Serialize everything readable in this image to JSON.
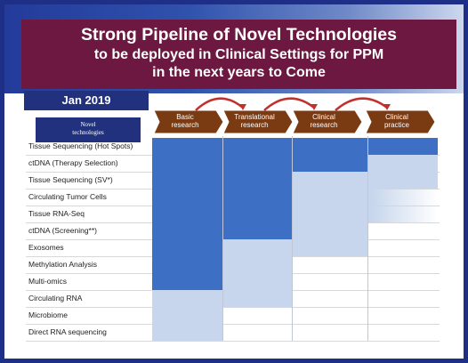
{
  "title": {
    "line1": "Strong Pipeline of Novel Technologies",
    "line2": "to be deployed in Clinical Settings for PPM",
    "line3": "in the next years to Come"
  },
  "date": "Jan 2019",
  "tech_header": {
    "line1": "Novel",
    "line2": "technologies"
  },
  "stages": [
    {
      "label": "Basic\nresearch",
      "color": "#7a3a12"
    },
    {
      "label": "Translational\nresearch",
      "color": "#7a3a12"
    },
    {
      "label": "Clinical\nresearch",
      "color": "#7a3a12"
    },
    {
      "label": "Clinical\npractice",
      "color": "#7a3a12"
    }
  ],
  "colors": {
    "dark_blue": "#3d6fc4",
    "light_blue": "#c7d6ec",
    "title_bg": "#6d1840",
    "arrow": "#c0312e",
    "border": "#1e2f88"
  },
  "technologies": [
    {
      "name": "Tissue Sequencing (Hot Spots)",
      "dark_until": 4,
      "light_until": 4,
      "fade": false
    },
    {
      "name": "ctDNA (Therapy Selection)",
      "dark_until": 3,
      "light_until": 4,
      "fade": false
    },
    {
      "name": "Tissue Sequencing (SV*)",
      "dark_until": 2,
      "light_until": 4,
      "fade": false
    },
    {
      "name": "Circulating Tumor Cells",
      "dark_until": 2,
      "light_until": 4,
      "fade": true
    },
    {
      "name": "Tissue RNA-Seq",
      "dark_until": 2,
      "light_until": 4,
      "fade": true
    },
    {
      "name": "ctDNA (Screening**)",
      "dark_until": 2,
      "light_until": 3,
      "fade": false
    },
    {
      "name": "Exosomes",
      "dark_until": 1,
      "light_until": 3,
      "fade": false
    },
    {
      "name": "Methylation Analysis",
      "dark_until": 1,
      "light_until": 2,
      "fade": false
    },
    {
      "name": "Multi-omics",
      "dark_until": 1,
      "light_until": 2,
      "fade": false
    },
    {
      "name": "Circulating RNA",
      "dark_until": 0,
      "light_until": 2,
      "fade": false
    },
    {
      "name": "Microbiome",
      "dark_until": 0,
      "light_until": 1,
      "fade": false
    },
    {
      "name": "Direct RNA sequencing",
      "dark_until": 0,
      "light_until": 1,
      "fade": false
    }
  ]
}
